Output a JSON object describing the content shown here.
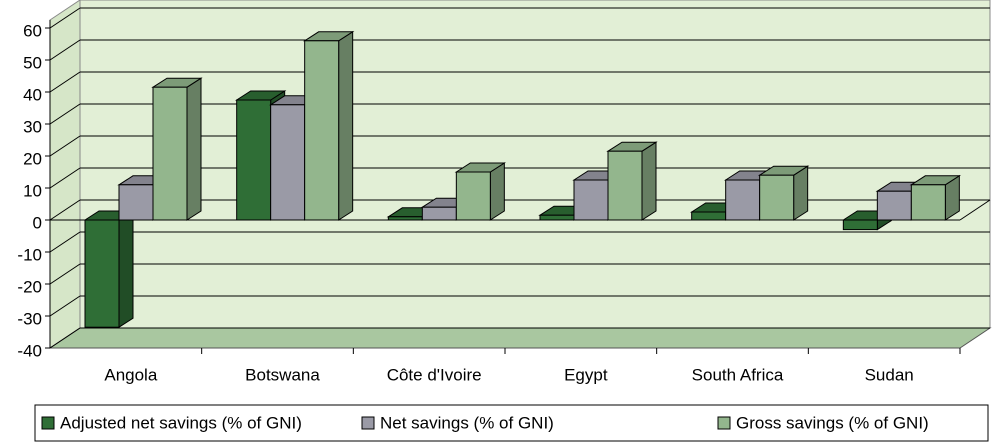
{
  "chart_data": {
    "type": "bar3d",
    "categories": [
      "Angola",
      "Botswana",
      "Côte d'Ivoire",
      "Egypt",
      "South Africa",
      "Sudan"
    ],
    "series": [
      {
        "name": "Adjusted net savings (% of GNI)",
        "color": "#2f6e36",
        "values": [
          -33.5,
          37.5,
          1,
          1.5,
          2.5,
          -3
        ]
      },
      {
        "name": "Net savings (% of GNI)",
        "color": "#9a9aa6",
        "values": [
          11,
          36,
          4,
          12.5,
          12.5,
          9
        ]
      },
      {
        "name": "Gross savings (% of GNI)",
        "color": "#93b68d",
        "values": [
          41.5,
          56,
          15,
          21.5,
          14,
          11
        ]
      }
    ],
    "ylim": [
      -40,
      60
    ],
    "yticks": [
      -40,
      -30,
      -20,
      -10,
      0,
      10,
      20,
      30,
      40,
      50,
      60
    ],
    "grid": true,
    "legend": "bottom"
  }
}
